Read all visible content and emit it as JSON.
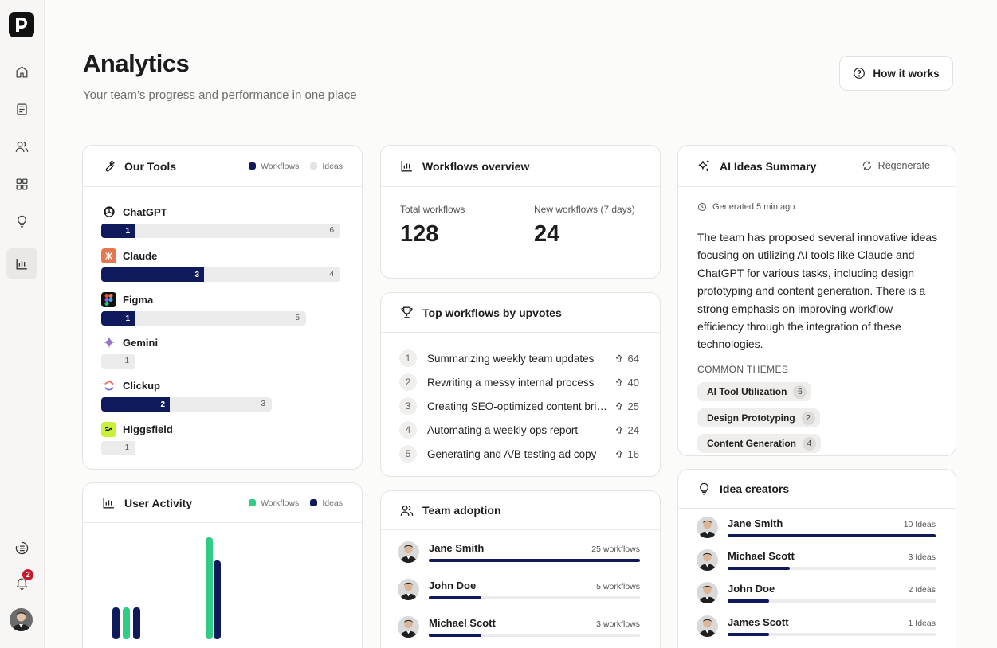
{
  "page": {
    "title": "Analytics",
    "subtitle": "Your team’s progress and performance in one place",
    "how_it_works": "How it works"
  },
  "sidebar": {
    "nav": [
      "home-icon",
      "document-icon",
      "users-icon",
      "grid-icon",
      "lightbulb-icon",
      "analytics-icon"
    ],
    "active": "analytics-icon",
    "notifications_count": "2"
  },
  "tools_card": {
    "title": "Our Tools",
    "legend": [
      "Workflows",
      "Ideas"
    ],
    "legend_colors": [
      "#0e1a5c",
      "#e4e4e4"
    ],
    "tools": [
      {
        "name": "ChatGPT",
        "workflows": "1",
        "ideas": "6",
        "icon": "chatgpt-icon"
      },
      {
        "name": "Claude",
        "workflows": "3",
        "ideas": "4",
        "icon": "claude-icon"
      },
      {
        "name": "Figma",
        "workflows": "1",
        "ideas": "5",
        "icon": "figma-icon"
      },
      {
        "name": "Gemini",
        "workflows": "",
        "ideas": "1",
        "icon": "gemini-icon"
      },
      {
        "name": "Clickup",
        "workflows": "2",
        "ideas": "3",
        "icon": "clickup-icon"
      },
      {
        "name": "Higgsfield",
        "workflows": "",
        "ideas": "1",
        "icon": "higgsfield-icon"
      }
    ]
  },
  "activity_card": {
    "title": "User Activity",
    "legend": [
      "Workflows",
      "Ideas"
    ],
    "legend_colors": [
      "#2ecc85",
      "#0e1a5c"
    ]
  },
  "workflows_card": {
    "title": "Workflows overview",
    "total_label": "Total workflows",
    "total_value": "128",
    "new_label": "New workflows  (7 days)",
    "new_value": "24"
  },
  "top_card": {
    "title": "Top workflows by upvotes",
    "rows": [
      {
        "rank": "1",
        "title": "Summarizing weekly team updates",
        "votes": "64"
      },
      {
        "rank": "2",
        "title": "Rewriting a messy internal process",
        "votes": "40"
      },
      {
        "rank": "3",
        "title": "Creating SEO-optimized content briefs",
        "votes": "25"
      },
      {
        "rank": "4",
        "title": "Automating a weekly ops report",
        "votes": "24"
      },
      {
        "rank": "5",
        "title": "Generating and  A/B testing ad copy",
        "votes": "16"
      }
    ]
  },
  "adoption_card": {
    "title": "Team adoption",
    "people": [
      {
        "name": "Jane Smith",
        "meta": "25 workflows",
        "share": 1.0
      },
      {
        "name": "John Doe",
        "meta": "5 workflows",
        "share": 0.25
      },
      {
        "name": "Michael Scott",
        "meta": "3 workflows",
        "share": 0.25
      }
    ]
  },
  "summary_card": {
    "title": "AI Ideas Summary",
    "regenerate": "Regenerate",
    "generated": "Generated 5 min ago",
    "text": "The team has proposed several innovative ideas focusing on utilizing AI tools like Claude and ChatGPT for various tasks, including design prototyping and content generation. There is a strong emphasis on improving workflow efficiency through the integration of these technologies.",
    "themes_label": "COMMON THEMES",
    "themes": [
      {
        "name": "AI Tool Utilization",
        "count": "6"
      },
      {
        "name": "Design Prototyping",
        "count": "2"
      },
      {
        "name": "Content Generation",
        "count": "4"
      }
    ]
  },
  "creators_card": {
    "title": "Idea creators",
    "people": [
      {
        "name": "Jane Smith",
        "meta": "10 Ideas",
        "share": 1.0
      },
      {
        "name": "Michael Scott",
        "meta": "3 Ideas",
        "share": 0.3
      },
      {
        "name": "John Doe",
        "meta": "2 Ideas",
        "share": 0.2
      },
      {
        "name": "James Scott",
        "meta": "1 Ideas",
        "share": 0.2
      }
    ]
  }
}
